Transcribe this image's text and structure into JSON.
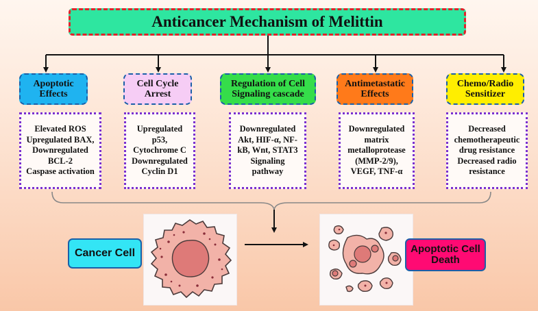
{
  "title": "Anticancer Mechanism of Melittin",
  "categories": [
    {
      "heading": "Apoptotic Effects",
      "details": "Elevated ROS\nUpregulated BAX,\nDownregulated\nBCL-2\nCaspase activation",
      "color": "#1fb3f0"
    },
    {
      "heading": "Cell Cycle Arrest",
      "details": "Upregulated\np53,\nCytochrome C\nDownregulated\nCyclin D1",
      "color": "#f6cdf5"
    },
    {
      "heading": "Regulation of Cell Signaling cascade",
      "details": "Downregulated\nAkt, HIF-α, NF-\nkB, Wnt, STAT3\nSignaling\npathway",
      "color": "#35dd4a"
    },
    {
      "heading": "Antimetastatic Effects",
      "details": "Downregulated\nmatrix\nmetalloprotease\n(MMP-2/9),\nVEGF, TNF-α",
      "color": "#ff7a1a"
    },
    {
      "heading": "Chemo/Radio Sensitizer",
      "details": "Decreased\nchemotherapeutic\ndrug resistance\nDecreased radio\nresistance",
      "color": "#ffee00"
    }
  ],
  "cancer_cell": {
    "label": "Cancer Cell",
    "color": "#33e5f5"
  },
  "apoptotic": {
    "label": "Apoptotic Cell Death",
    "color": "#ff0a73"
  }
}
